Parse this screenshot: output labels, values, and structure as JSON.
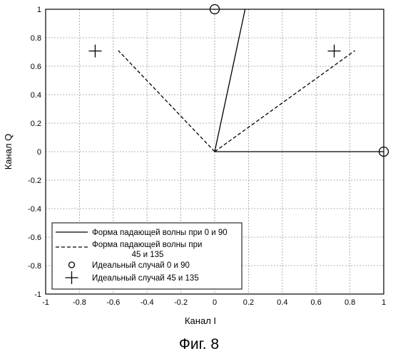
{
  "chart_data": {
    "type": "line",
    "xlabel": "Канал I",
    "ylabel": "Канал Q",
    "xlim": [
      -1,
      1
    ],
    "ylim": [
      -1,
      1
    ],
    "grid": true,
    "legend_position": "bottom-left",
    "x_ticks": [
      {
        "value": -1,
        "label": "-1"
      },
      {
        "value": -0.8,
        "label": "-0.8"
      },
      {
        "value": -0.6,
        "label": "-0.6"
      },
      {
        "value": -0.4,
        "label": "-0.4"
      },
      {
        "value": -0.2,
        "label": "-0.2"
      },
      {
        "value": 0,
        "label": "0"
      },
      {
        "value": 0.2,
        "label": "0.2"
      },
      {
        "value": 0.4,
        "label": "0.4"
      },
      {
        "value": 0.6,
        "label": "0.6"
      },
      {
        "value": 0.8,
        "label": "0.8"
      },
      {
        "value": 1,
        "label": "1"
      }
    ],
    "y_ticks": [
      {
        "value": 1,
        "label": "1"
      },
      {
        "value": 0.8,
        "label": "0.8"
      },
      {
        "value": 0.6,
        "label": "0.6"
      },
      {
        "value": 0.4,
        "label": "0.4"
      },
      {
        "value": 0.2,
        "label": "0.2"
      },
      {
        "value": 0,
        "label": "0"
      },
      {
        "value": -0.2,
        "label": "-0.2"
      },
      {
        "value": -0.4,
        "label": "-0.4"
      },
      {
        "value": -0.6,
        "label": "-0.6"
      },
      {
        "value": -0.8,
        "label": "-0.8"
      },
      {
        "value": -1,
        "label": "-1"
      }
    ],
    "series": [
      {
        "name": "Форма падающей волны при 0 и 90",
        "style": "solid",
        "segments": [
          [
            [
              0,
              0
            ],
            [
              1,
              0
            ]
          ],
          [
            [
              0,
              0
            ],
            [
              0.18,
              1
            ]
          ]
        ]
      },
      {
        "name": "Форма падающей волны при 45 и 135",
        "name_lines": [
          "Форма падающей волны при",
          "45 и 135"
        ],
        "style": "dashed",
        "segments": [
          [
            [
              0,
              0
            ],
            [
              0.83,
              0.71
            ]
          ],
          [
            [
              0,
              0
            ],
            [
              -0.57,
              0.71
            ]
          ]
        ]
      },
      {
        "name": "Идеальный случай 0 и 90",
        "style": "marker-circle",
        "points": [
          [
            0,
            1
          ],
          [
            1,
            0
          ]
        ]
      },
      {
        "name": "Идеальный случай 45 и 135",
        "style": "marker-plus",
        "points": [
          [
            -0.707,
            0.707
          ],
          [
            0.707,
            0.707
          ]
        ]
      }
    ],
    "caption": "Фиг. 8"
  }
}
